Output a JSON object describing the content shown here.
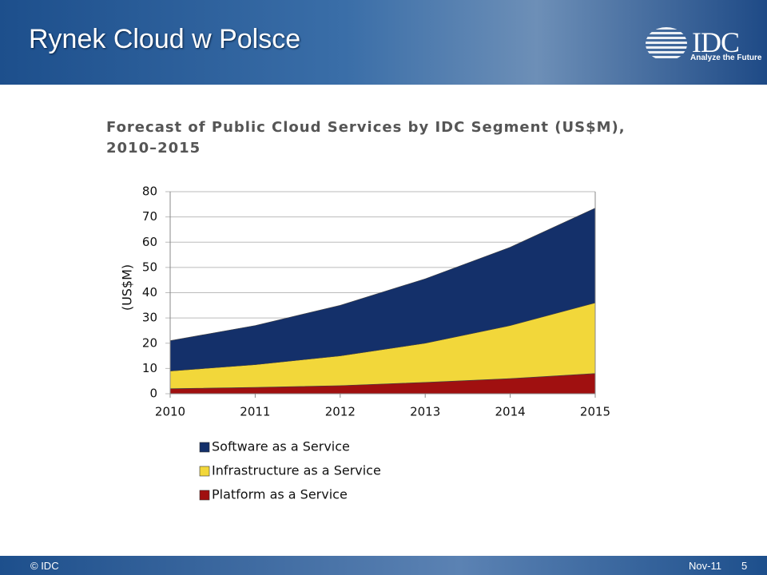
{
  "header": {
    "title": "Rynek Cloud w Polsce",
    "logo": "IDC",
    "tagline": "Analyze the Future"
  },
  "footer": {
    "copyright": "© IDC",
    "date": "Nov-11",
    "page": "5"
  },
  "chart_data": {
    "type": "stacked_area",
    "title": "Forecast of Public Cloud Services by IDC Segment (US$M),",
    "subtitle": "2010–2015",
    "y_label": "(US$M)",
    "categories": [
      "2010",
      "2011",
      "2012",
      "2013",
      "2014",
      "2015"
    ],
    "series": [
      {
        "name": "Software as a Service",
        "color": "#14306a",
        "values": [
          12,
          15.5,
          20,
          25.5,
          31,
          37.5
        ]
      },
      {
        "name": "Infrastructure as a Service",
        "color": "#f2d73a",
        "values": [
          7,
          9,
          11.8,
          15.5,
          21,
          28
        ]
      },
      {
        "name": "Platform as a Service",
        "color": "#a01010",
        "values": [
          2,
          2.5,
          3.2,
          4.5,
          6,
          8
        ]
      }
    ],
    "ylim": [
      0,
      80
    ],
    "yticks": [
      0,
      10,
      20,
      30,
      40,
      50,
      60,
      70,
      80
    ],
    "grid": true
  }
}
